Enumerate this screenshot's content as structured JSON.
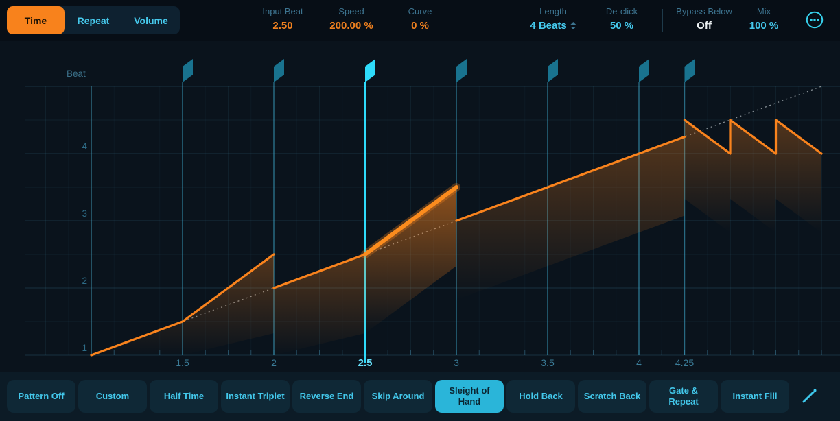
{
  "header": {
    "tabs": [
      {
        "label": "Time",
        "active": true
      },
      {
        "label": "Repeat",
        "active": false
      },
      {
        "label": "Volume",
        "active": false
      }
    ],
    "params": [
      {
        "label": "Input Beat",
        "value": "2.50",
        "style": "orange"
      },
      {
        "label": "Speed",
        "value": "200.00 %",
        "style": "orange"
      },
      {
        "label": "Curve",
        "value": "0 %",
        "style": "orange"
      },
      {
        "label": "Length",
        "value": "4 Beats",
        "style": "cyan",
        "stepper": true
      },
      {
        "label": "De-click",
        "value": "50 %",
        "style": "cyan"
      },
      {
        "label": "Bypass Below",
        "value": "Off",
        "style": "white",
        "divider_before": true
      },
      {
        "label": "Mix",
        "value": "100 %",
        "style": "cyan"
      }
    ],
    "more_menu_icon": "circled-ellipsis"
  },
  "graph": {
    "beat_axis_label": "Beat",
    "x_ticks": [
      {
        "beat": 1.5,
        "label": "1.5",
        "active": false
      },
      {
        "beat": 2,
        "label": "2",
        "active": false
      },
      {
        "beat": 2.5,
        "label": "2.5",
        "active": true
      },
      {
        "beat": 3,
        "label": "3",
        "active": false
      },
      {
        "beat": 3.5,
        "label": "3.5",
        "active": false
      },
      {
        "beat": 4,
        "label": "4",
        "active": false
      },
      {
        "beat": 4.25,
        "label": "4.25",
        "active": false
      }
    ],
    "y_ticks": [
      {
        "out": 1,
        "label": "1"
      },
      {
        "out": 2,
        "label": "2"
      },
      {
        "out": 3,
        "label": "3"
      },
      {
        "out": 4,
        "label": "4"
      }
    ],
    "flags": [
      {
        "beat": 1.5,
        "active": false
      },
      {
        "beat": 2,
        "active": false
      },
      {
        "beat": 2.5,
        "active": true
      },
      {
        "beat": 3,
        "active": false
      },
      {
        "beat": 3.5,
        "active": false
      },
      {
        "beat": 4,
        "active": false
      },
      {
        "beat": 4.25,
        "active": false
      }
    ],
    "reference_line": {
      "from": [
        1,
        1
      ],
      "to": [
        5,
        5
      ]
    },
    "segments": [
      {
        "name": "slice-1",
        "selected": false,
        "points": [
          [
            1,
            1
          ],
          [
            1.5,
            1.5
          ],
          [
            2,
            2.5
          ]
        ]
      },
      {
        "name": "slice-2",
        "selected": false,
        "points": [
          [
            2,
            2
          ],
          [
            2.5,
            2.5
          ]
        ]
      },
      {
        "name": "slice-3",
        "selected": true,
        "points": [
          [
            2.5,
            2.5
          ],
          [
            3,
            3.5
          ]
        ]
      },
      {
        "name": "slice-4",
        "selected": false,
        "points": [
          [
            3,
            3
          ],
          [
            4.25,
            4.25
          ]
        ]
      },
      {
        "name": "slice-5",
        "selected": false,
        "points": [
          [
            4.25,
            4.5
          ],
          [
            4.5,
            4
          ],
          [
            4.5,
            4.5
          ],
          [
            4.75,
            4
          ],
          [
            4.75,
            4.5
          ],
          [
            5,
            4
          ]
        ]
      }
    ],
    "axis_range": {
      "input_beats": [
        1,
        5
      ],
      "output_beats": [
        1,
        5
      ]
    }
  },
  "patterns": [
    {
      "label": "Pattern Off",
      "active": false
    },
    {
      "label": "Custom",
      "active": false
    },
    {
      "label": "Half Time",
      "active": false
    },
    {
      "label": "Instant Triplet",
      "active": false
    },
    {
      "label": "Reverse End",
      "active": false
    },
    {
      "label": "Skip Around",
      "active": false
    },
    {
      "label": "Sleight of Hand",
      "active": true
    },
    {
      "label": "Hold Back",
      "active": false
    },
    {
      "label": "Scratch Back",
      "active": false
    },
    {
      "label": "Gate & Repeat",
      "active": false
    },
    {
      "label": "Instant Fill",
      "active": false
    }
  ],
  "edit_icon": "pencil",
  "colors": {
    "accent_orange": "#f9831d",
    "accent_cyan": "#45c9ed",
    "flag_teal": "#19738f",
    "flag_active": "#2edbfa",
    "label_steel": "#3d7490",
    "tab_active_bg": "#f8821c",
    "pattern_active_bg": "#2ab5d9",
    "graph_bg": "#0a131c",
    "bottom_bar_bg": "#0c1b26"
  }
}
